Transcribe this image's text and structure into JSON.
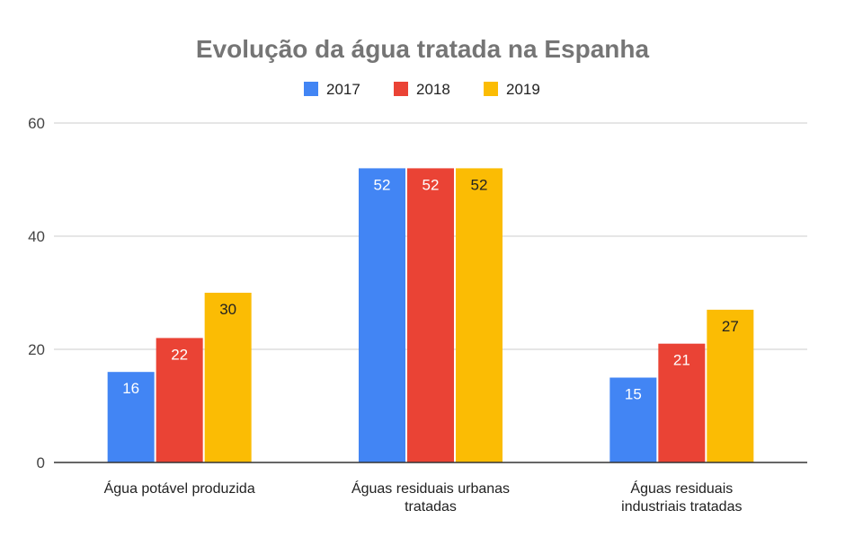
{
  "chart_data": {
    "type": "bar",
    "title": "Evolução da água tratada na Espanha",
    "categories": [
      [
        "Água potável produzida"
      ],
      [
        "Águas residuais urbanas",
        "tratadas"
      ],
      [
        "Águas residuais",
        "industriais tratadas"
      ]
    ],
    "series": [
      {
        "name": "2017",
        "color": "#4285f4",
        "values": [
          16,
          52,
          15
        ],
        "label_color": "light"
      },
      {
        "name": "2018",
        "color": "#ea4335",
        "values": [
          22,
          52,
          21
        ],
        "label_color": "light"
      },
      {
        "name": "2019",
        "color": "#fbbc04",
        "values": [
          30,
          52,
          27
        ],
        "label_color": "dark"
      }
    ],
    "ylim": [
      0,
      60
    ],
    "yticks": [
      0,
      20,
      40,
      60
    ],
    "grid": true,
    "legend_position": "top-center"
  }
}
